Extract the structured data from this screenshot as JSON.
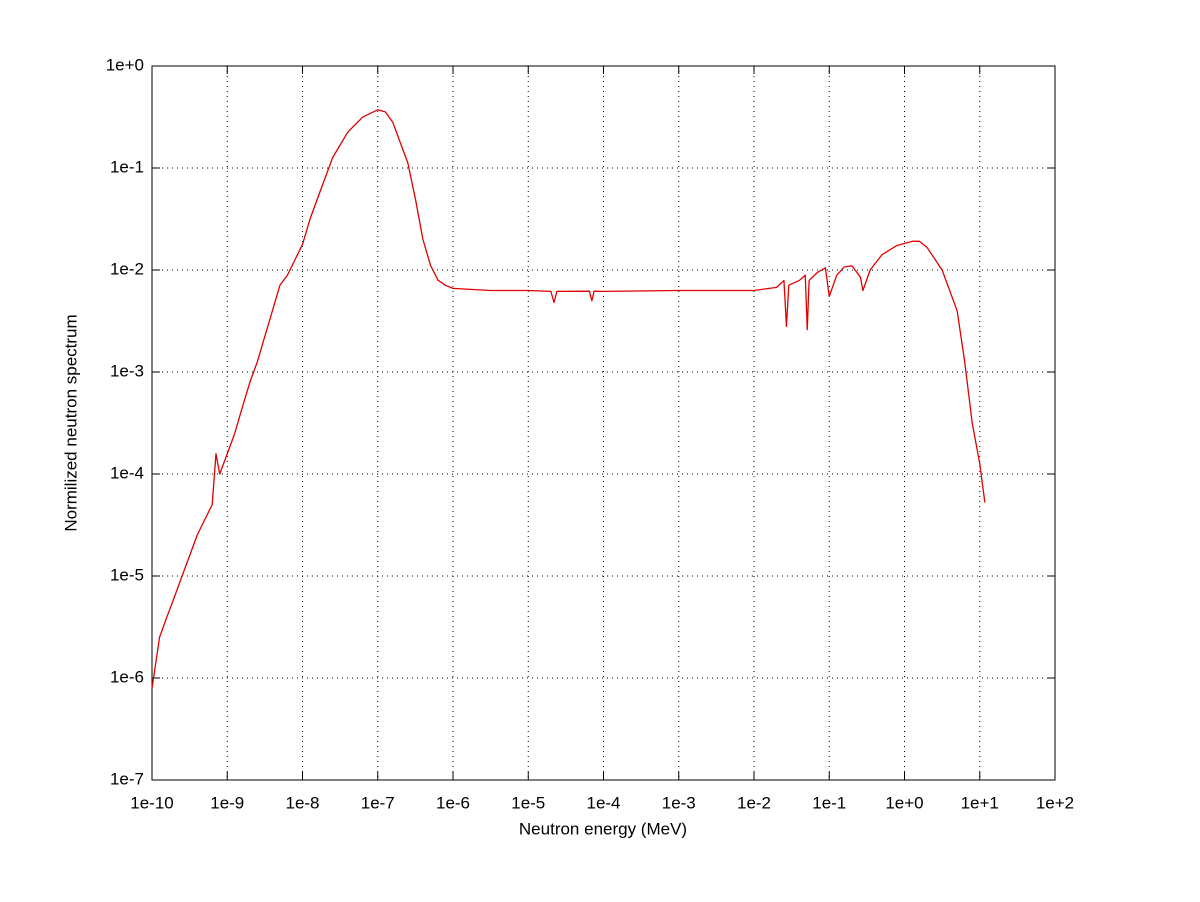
{
  "chart_data": {
    "type": "line",
    "xlabel": "Neutron energy (MeV)",
    "ylabel": "Normilized neutron spectrum",
    "xscale": "log",
    "yscale": "log",
    "grid": true,
    "color": "#e00000",
    "xlim": [
      1e-10,
      100
    ],
    "ylim": [
      1e-07,
      1
    ],
    "xticks": [
      {
        "value": 1e-10,
        "label": "1e-10"
      },
      {
        "value": 1e-09,
        "label": "1e-9"
      },
      {
        "value": 1e-08,
        "label": "1e-8"
      },
      {
        "value": 1e-07,
        "label": "1e-7"
      },
      {
        "value": 1e-06,
        "label": "1e-6"
      },
      {
        "value": 1e-05,
        "label": "1e-5"
      },
      {
        "value": 0.0001,
        "label": "1e-4"
      },
      {
        "value": 0.001,
        "label": "1e-3"
      },
      {
        "value": 0.01,
        "label": "1e-2"
      },
      {
        "value": 0.1,
        "label": "1e-1"
      },
      {
        "value": 1,
        "label": "1e+0"
      },
      {
        "value": 10,
        "label": "1e+1"
      },
      {
        "value": 100,
        "label": "1e+2"
      }
    ],
    "yticks": [
      {
        "value": 1e-07,
        "label": "1e-7"
      },
      {
        "value": 1e-06,
        "label": "1e-6"
      },
      {
        "value": 1e-05,
        "label": "1e-5"
      },
      {
        "value": 0.0001,
        "label": "1e-4"
      },
      {
        "value": 0.001,
        "label": "1e-3"
      },
      {
        "value": 0.01,
        "label": "1e-2"
      },
      {
        "value": 0.1,
        "label": "1e-1"
      },
      {
        "value": 1,
        "label": "1e+0"
      }
    ],
    "x": [
      1e-10,
      1.26e-10,
      1.58e-10,
      2e-10,
      2.51e-10,
      3.16e-10,
      3.98e-10,
      5.01e-10,
      6.31e-10,
      7.08e-10,
      7.94e-10,
      1e-09,
      1.26e-09,
      1.58e-09,
      2e-09,
      2.51e-09,
      3.16e-09,
      3.98e-09,
      5.01e-09,
      6.31e-09,
      7.94e-09,
      1e-08,
      1.26e-08,
      1.58e-08,
      2.51e-08,
      3.98e-08,
      6.31e-08,
      1e-07,
      1.26e-07,
      1.58e-07,
      2.51e-07,
      3.16e-07,
      3.98e-07,
      5.01e-07,
      6.31e-07,
      7.94e-07,
      1e-06,
      3.16e-06,
      1e-05,
      2e-05,
      2.2e-05,
      2.4e-05,
      6.5e-05,
      7e-05,
      7.5e-05,
      0.0001,
      0.001,
      0.01,
      0.02,
      0.025,
      0.027,
      0.029,
      0.04,
      0.048,
      0.051,
      0.054,
      0.07,
      0.089,
      0.1,
      0.126,
      0.158,
      0.2,
      0.26,
      0.28,
      0.35,
      0.501,
      0.794,
      1.26,
      1.58,
      2.0,
      3.16,
      5.01,
      6.31,
      7.94,
      10,
      11.7
    ],
    "values": [
      7.94e-07,
      2.51e-06,
      3.98e-06,
      6.31e-06,
      1e-05,
      1.58e-05,
      2.51e-05,
      3.55e-05,
      5.01e-05,
      0.000158,
      0.0001,
      0.000158,
      0.000251,
      0.000447,
      0.000794,
      0.00126,
      0.00224,
      0.00398,
      0.00708,
      0.00891,
      0.0126,
      0.0178,
      0.0316,
      0.0501,
      0.126,
      0.224,
      0.316,
      0.372,
      0.355,
      0.282,
      0.112,
      0.0501,
      0.02,
      0.0112,
      0.00794,
      0.00708,
      0.0066,
      0.0063,
      0.0063,
      0.00617,
      0.0048,
      0.00617,
      0.0062,
      0.005,
      0.0062,
      0.00617,
      0.0063,
      0.0063,
      0.00676,
      0.0079,
      0.0028,
      0.0071,
      0.0079,
      0.0089,
      0.0026,
      0.0079,
      0.0095,
      0.0105,
      0.0055,
      0.0089,
      0.0107,
      0.011,
      0.0085,
      0.0063,
      0.01,
      0.0141,
      0.0174,
      0.0191,
      0.0191,
      0.0166,
      0.01,
      0.00398,
      0.00126,
      0.000316,
      0.000126,
      5.25e-05
    ]
  }
}
